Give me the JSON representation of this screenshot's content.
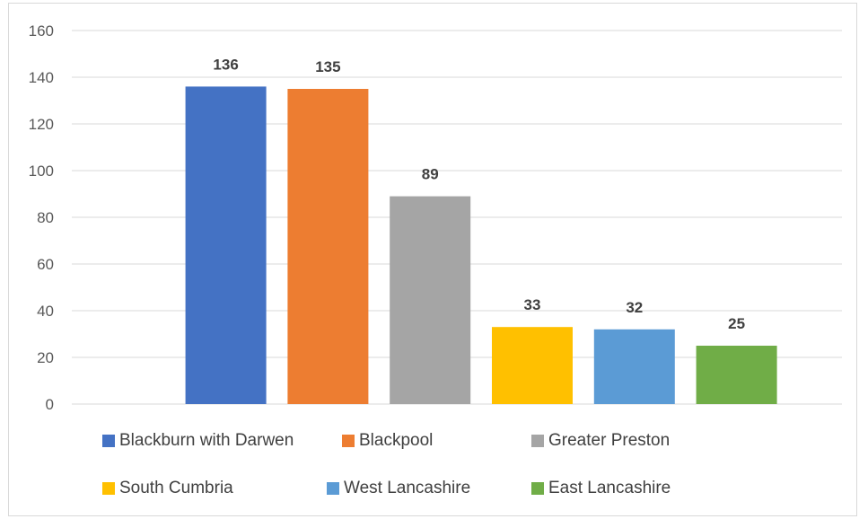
{
  "chart_data": {
    "type": "bar",
    "categories": [
      "Blackburn with Darwen",
      "Blackpool",
      "Greater Preston",
      "South Cumbria",
      "West Lancashire",
      "East Lancashire"
    ],
    "values": [
      136,
      135,
      89,
      33,
      32,
      25
    ],
    "data_labels": [
      "136",
      "135",
      "89",
      "33",
      "32",
      "25"
    ],
    "colors": [
      "#4472c4",
      "#ed7d31",
      "#a5a5a5",
      "#ffc000",
      "#5b9bd5",
      "#70ad47"
    ],
    "ylim": [
      0,
      160
    ],
    "y_ticks": [
      "0",
      "20",
      "40",
      "60",
      "80",
      "100",
      "120",
      "140",
      "160"
    ],
    "grid": true,
    "legend_position": "bottom",
    "title": "",
    "xlabel": "",
    "ylabel": ""
  }
}
